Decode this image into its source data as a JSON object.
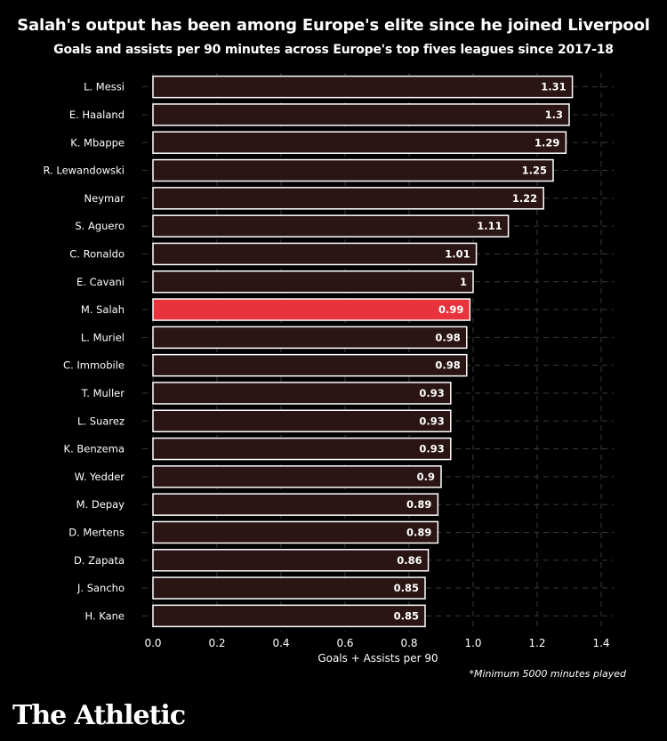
{
  "title": "Salah's output has been among Europe's elite since he joined Liverpool",
  "subtitle": "Goals and assists per 90 minutes across Europe's top fives leagues since 2017-18",
  "footnote": "*Minimum 5000 minutes played",
  "brand": "The Athletic",
  "colors": {
    "background": "#000000",
    "bar_fill": "#2a1414",
    "bar_stroke": "#ffffff",
    "highlight": "#e8323c",
    "grid": "#3a3a3a",
    "text": "#ffffff"
  },
  "chart_data": {
    "type": "bar",
    "orientation": "horizontal",
    "categories": [
      "L. Messi",
      "E. Haaland",
      "K. Mbappe",
      "R. Lewandowski",
      "Neymar",
      "S. Aguero",
      "C. Ronaldo",
      "E. Cavani",
      "M. Salah",
      "L. Muriel",
      "C. Immobile",
      "T. Muller",
      "L. Suarez",
      "K. Benzema",
      "W. Yedder",
      "M. Depay",
      "D. Mertens",
      "D. Zapata",
      "J. Sancho",
      "H. Kane"
    ],
    "values": [
      1.31,
      1.3,
      1.29,
      1.25,
      1.22,
      1.11,
      1.01,
      1,
      0.99,
      0.98,
      0.98,
      0.93,
      0.93,
      0.93,
      0.9,
      0.89,
      0.89,
      0.86,
      0.85,
      0.85
    ],
    "value_labels": [
      "1.31",
      "1.3",
      "1.29",
      "1.25",
      "1.22",
      "1.11",
      "1.01",
      "1",
      "0.99",
      "0.98",
      "0.98",
      "0.93",
      "0.93",
      "0.93",
      "0.9",
      "0.89",
      "0.89",
      "0.86",
      "0.85",
      "0.85"
    ],
    "highlight": "M. Salah",
    "xlabel": "Goals + Assists per 90",
    "ylabel": "",
    "xlim": [
      0,
      1.4
    ],
    "xticks": [
      "0.0",
      "0.2",
      "0.4",
      "0.6",
      "0.8",
      "1.0",
      "1.2",
      "1.4"
    ],
    "grid": true
  }
}
